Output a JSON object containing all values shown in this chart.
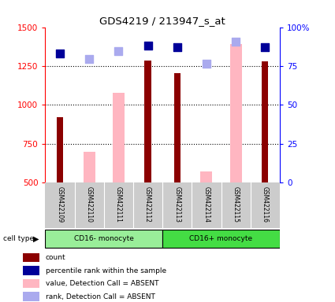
{
  "title": "GDS4219 / 213947_s_at",
  "samples": [
    "GSM422109",
    "GSM422110",
    "GSM422111",
    "GSM422112",
    "GSM422113",
    "GSM422114",
    "GSM422115",
    "GSM422116"
  ],
  "count_values": [
    920,
    null,
    null,
    1285,
    1205,
    null,
    null,
    1280
  ],
  "absent_values": [
    null,
    700,
    1080,
    null,
    null,
    570,
    1390,
    null
  ],
  "percentile_dark": [
    1330,
    null,
    null,
    1380,
    1370,
    null,
    null,
    1370
  ],
  "percentile_light": [
    null,
    1295,
    1345,
    null,
    null,
    1265,
    1405,
    null
  ],
  "ylim_left": [
    500,
    1500
  ],
  "ylim_right": [
    0,
    100
  ],
  "yticks_left": [
    500,
    750,
    1000,
    1250,
    1500
  ],
  "yticks_right": [
    0,
    25,
    50,
    75,
    100
  ],
  "ytick_labels_right": [
    "0",
    "25",
    "50",
    "75",
    "100%"
  ],
  "color_count": "#8B0000",
  "color_absent_bar": "#FFB6C1",
  "color_percentile_dark": "#000099",
  "color_percentile_light": "#AAAAEE",
  "groups": [
    {
      "label": "CD16- monocyte",
      "indices": [
        0,
        1,
        2,
        3
      ],
      "color": "#99EE99"
    },
    {
      "label": "CD16+ monocyte",
      "indices": [
        4,
        5,
        6,
        7
      ],
      "color": "#44DD44"
    }
  ],
  "legend_items": [
    {
      "label": "count",
      "color": "#8B0000"
    },
    {
      "label": "percentile rank within the sample",
      "color": "#000099"
    },
    {
      "label": "value, Detection Call = ABSENT",
      "color": "#FFB6C1"
    },
    {
      "label": "rank, Detection Call = ABSENT",
      "color": "#AAAAEE"
    }
  ],
  "cell_type_label": "cell type",
  "background_color": "#ffffff",
  "bar_width": 0.4,
  "dot_size": 45
}
